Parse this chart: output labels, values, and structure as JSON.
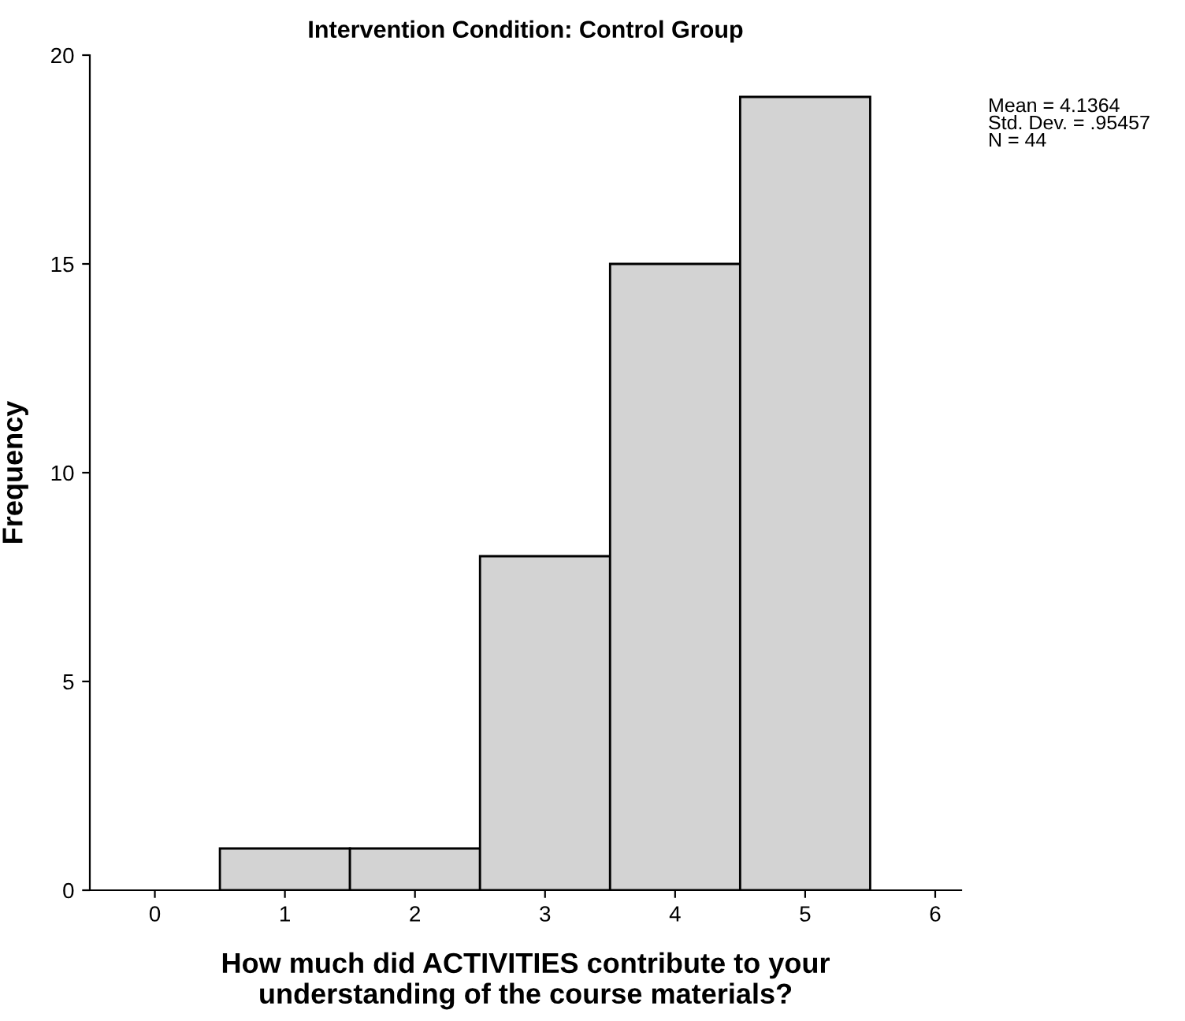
{
  "chart_data": {
    "type": "histogram",
    "title": "Intervention Condition: Control Group",
    "xlabel": "How much did ACTIVITIES contribute to your\nunderstanding of the course materials?",
    "ylabel": "Frequency",
    "bins": [
      0.5,
      1.5,
      2.5,
      3.5,
      4.5,
      5.5
    ],
    "values": [
      1,
      1,
      8,
      15,
      19
    ],
    "color": "#d3d3d3",
    "xlim": [
      -0.5,
      6.2
    ],
    "xticks": [
      0,
      1,
      2,
      3,
      4,
      5,
      6
    ],
    "ylim": [
      0,
      20
    ],
    "yticks": [
      0,
      5,
      10,
      15,
      20
    ],
    "grid": false,
    "legend": false,
    "annotations": [
      "Mean = 4.1364",
      "Std. Dev. = .95457",
      "N = 44"
    ]
  }
}
